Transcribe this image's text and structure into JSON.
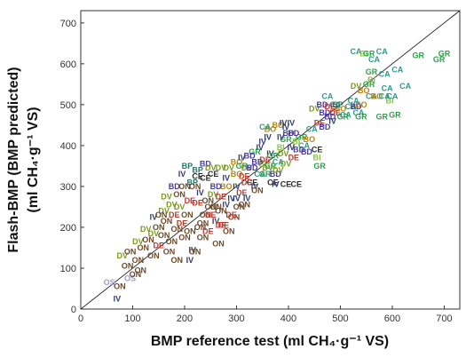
{
  "chart_data": {
    "type": "scatter",
    "xlabel": "BMP reference test (ml CH₄·g⁻¹ VS)",
    "ylabel_line1": "Flash-BMP (BMP predicted)",
    "ylabel_line2": "(ml CH₄·g⁻¹ VS)",
    "xlim": [
      0,
      730
    ],
    "ylim": [
      0,
      730
    ],
    "x_ticks": [
      0,
      100,
      200,
      300,
      400,
      500,
      600,
      700
    ],
    "y_ticks": [
      0,
      100,
      200,
      300,
      400,
      500,
      600,
      700
    ],
    "grid": false,
    "reference_line": "y = x",
    "colors": {
      "IV": "#2d3b6e",
      "BD": "#4a3aa8",
      "BO": "#b8860b",
      "CA": "#2e9a8e",
      "GR": "#2fa04a",
      "DV": "#7a9a1c",
      "DE": "#c0392b",
      "ON": "#6b4a2b",
      "CE": "#2b2b2b",
      "BI": "#8bc34a",
      "BP": "#1f7a6b",
      "OS": "#9a9acd"
    },
    "points": [
      {
        "g": "IV",
        "x": 70,
        "y": 25
      },
      {
        "g": "OS",
        "x": 55,
        "y": 65
      },
      {
        "g": "OS",
        "x": 95,
        "y": 75
      },
      {
        "g": "ON",
        "x": 75,
        "y": 55
      },
      {
        "g": "ON",
        "x": 105,
        "y": 85
      },
      {
        "g": "ON",
        "x": 90,
        "y": 105
      },
      {
        "g": "DV",
        "x": 80,
        "y": 130
      },
      {
        "g": "ON",
        "x": 110,
        "y": 120
      },
      {
        "g": "ON",
        "x": 120,
        "y": 150
      },
      {
        "g": "DV",
        "x": 110,
        "y": 165
      },
      {
        "g": "ON",
        "x": 140,
        "y": 130
      },
      {
        "g": "DV",
        "x": 125,
        "y": 195
      },
      {
        "g": "ON",
        "x": 95,
        "y": 140
      },
      {
        "g": "DE",
        "x": 150,
        "y": 155
      },
      {
        "g": "ON",
        "x": 160,
        "y": 180
      },
      {
        "g": "IV",
        "x": 140,
        "y": 225
      },
      {
        "g": "ON",
        "x": 150,
        "y": 200
      },
      {
        "g": "DV",
        "x": 160,
        "y": 240
      },
      {
        "g": "ON",
        "x": 175,
        "y": 165
      },
      {
        "g": "ON",
        "x": 185,
        "y": 195
      },
      {
        "g": "DE",
        "x": 195,
        "y": 210
      },
      {
        "g": "DV",
        "x": 175,
        "y": 255
      },
      {
        "g": "ON",
        "x": 200,
        "y": 175
      },
      {
        "g": "ON",
        "x": 205,
        "y": 230
      },
      {
        "g": "IV",
        "x": 215,
        "y": 145
      },
      {
        "g": "IV",
        "x": 210,
        "y": 120
      },
      {
        "g": "ON",
        "x": 220,
        "y": 140
      },
      {
        "g": "DE",
        "x": 225,
        "y": 260
      },
      {
        "g": "ON",
        "x": 230,
        "y": 200
      },
      {
        "g": "ON",
        "x": 235,
        "y": 175
      },
      {
        "g": "BD",
        "x": 180,
        "y": 300
      },
      {
        "g": "IV",
        "x": 195,
        "y": 330
      },
      {
        "g": "BP",
        "x": 215,
        "y": 310
      },
      {
        "g": "ON",
        "x": 240,
        "y": 230
      },
      {
        "g": "DE",
        "x": 245,
        "y": 190
      },
      {
        "g": "ON",
        "x": 250,
        "y": 250
      },
      {
        "g": "DV",
        "x": 255,
        "y": 280
      },
      {
        "g": "IV",
        "x": 260,
        "y": 215
      },
      {
        "g": "ON",
        "x": 265,
        "y": 160
      },
      {
        "g": "ON",
        "x": 270,
        "y": 240
      },
      {
        "g": "DE",
        "x": 275,
        "y": 205
      },
      {
        "g": "BO",
        "x": 280,
        "y": 300
      },
      {
        "g": "ON",
        "x": 285,
        "y": 190
      },
      {
        "g": "IV",
        "x": 290,
        "y": 270
      },
      {
        "g": "CE",
        "x": 255,
        "y": 330
      },
      {
        "g": "CE",
        "x": 240,
        "y": 320
      },
      {
        "g": "BP",
        "x": 225,
        "y": 340
      },
      {
        "g": "DV",
        "x": 270,
        "y": 345
      },
      {
        "g": "ON",
        "x": 295,
        "y": 225
      },
      {
        "g": "IV",
        "x": 300,
        "y": 300
      },
      {
        "g": "ON",
        "x": 305,
        "y": 250
      },
      {
        "g": "DE",
        "x": 310,
        "y": 285
      },
      {
        "g": "BO",
        "x": 300,
        "y": 330
      },
      {
        "g": "IV",
        "x": 320,
        "y": 270
      },
      {
        "g": "CE",
        "x": 330,
        "y": 310
      },
      {
        "g": "IV",
        "x": 335,
        "y": 300
      },
      {
        "g": "ON",
        "x": 340,
        "y": 290
      },
      {
        "g": "DE",
        "x": 315,
        "y": 325
      },
      {
        "g": "DV",
        "x": 320,
        "y": 345
      },
      {
        "g": "CA",
        "x": 345,
        "y": 330
      },
      {
        "g": "BI",
        "x": 350,
        "y": 355
      },
      {
        "g": "GR",
        "x": 355,
        "y": 330
      },
      {
        "g": "BD",
        "x": 340,
        "y": 360
      },
      {
        "g": "DV",
        "x": 360,
        "y": 345
      },
      {
        "g": "IV",
        "x": 365,
        "y": 380
      },
      {
        "g": "GR",
        "x": 370,
        "y": 375
      },
      {
        "g": "BD",
        "x": 375,
        "y": 330
      },
      {
        "g": "CA",
        "x": 380,
        "y": 360
      },
      {
        "g": "CE",
        "x": 370,
        "y": 310
      },
      {
        "g": "IV",
        "x": 375,
        "y": 305
      },
      {
        "g": "CE",
        "x": 395,
        "y": 305
      },
      {
        "g": "CE",
        "x": 415,
        "y": 305
      },
      {
        "g": "BI",
        "x": 385,
        "y": 395
      },
      {
        "g": "DV",
        "x": 390,
        "y": 380
      },
      {
        "g": "GR",
        "x": 395,
        "y": 415
      },
      {
        "g": "BD",
        "x": 400,
        "y": 430
      },
      {
        "g": "IV",
        "x": 405,
        "y": 395
      },
      {
        "g": "DE",
        "x": 410,
        "y": 370
      },
      {
        "g": "BD",
        "x": 420,
        "y": 390
      },
      {
        "g": "GR",
        "x": 425,
        "y": 420
      },
      {
        "g": "CA",
        "x": 430,
        "y": 400
      },
      {
        "g": "BD",
        "x": 435,
        "y": 385
      },
      {
        "g": "BO",
        "x": 440,
        "y": 415
      },
      {
        "g": "DV",
        "x": 395,
        "y": 355
      },
      {
        "g": "IV",
        "x": 350,
        "y": 410
      },
      {
        "g": "BO",
        "x": 365,
        "y": 440
      },
      {
        "g": "CA",
        "x": 355,
        "y": 445
      },
      {
        "g": "IV",
        "x": 360,
        "y": 420
      },
      {
        "g": "BO",
        "x": 380,
        "y": 450
      },
      {
        "g": "IV",
        "x": 395,
        "y": 445
      },
      {
        "g": "IV",
        "x": 405,
        "y": 455
      },
      {
        "g": "BD",
        "x": 410,
        "y": 430
      },
      {
        "g": "IV",
        "x": 390,
        "y": 455
      },
      {
        "g": "CE",
        "x": 455,
        "y": 390
      },
      {
        "g": "BI",
        "x": 455,
        "y": 370
      },
      {
        "g": "GR",
        "x": 460,
        "y": 350
      },
      {
        "g": "DV",
        "x": 450,
        "y": 490
      },
      {
        "g": "BD",
        "x": 470,
        "y": 480
      },
      {
        "g": "BD",
        "x": 465,
        "y": 500
      },
      {
        "g": "DE",
        "x": 490,
        "y": 480
      },
      {
        "g": "BD",
        "x": 480,
        "y": 470
      },
      {
        "g": "BO",
        "x": 500,
        "y": 490
      },
      {
        "g": "CA",
        "x": 510,
        "y": 475
      },
      {
        "g": "CA",
        "x": 490,
        "y": 500
      },
      {
        "g": "IV",
        "x": 485,
        "y": 460
      },
      {
        "g": "GR",
        "x": 505,
        "y": 470
      },
      {
        "g": "BP",
        "x": 495,
        "y": 500
      },
      {
        "g": "DE",
        "x": 480,
        "y": 495
      },
      {
        "g": "CA",
        "x": 520,
        "y": 495
      },
      {
        "g": "BD",
        "x": 530,
        "y": 495
      },
      {
        "g": "BO",
        "x": 540,
        "y": 500
      },
      {
        "g": "CA",
        "x": 535,
        "y": 480
      },
      {
        "g": "CA",
        "x": 525,
        "y": 510
      },
      {
        "g": "BO",
        "x": 545,
        "y": 535
      },
      {
        "g": "GR",
        "x": 540,
        "y": 470
      },
      {
        "g": "DV",
        "x": 530,
        "y": 545
      },
      {
        "g": "GR",
        "x": 555,
        "y": 550
      },
      {
        "g": "CA",
        "x": 560,
        "y": 520
      },
      {
        "g": "BO",
        "x": 570,
        "y": 520
      },
      {
        "g": "BI",
        "x": 560,
        "y": 560
      },
      {
        "g": "GR",
        "x": 580,
        "y": 470
      },
      {
        "g": "CA",
        "x": 585,
        "y": 520
      },
      {
        "g": "CA",
        "x": 590,
        "y": 540
      },
      {
        "g": "BI",
        "x": 595,
        "y": 510
      },
      {
        "g": "CA",
        "x": 600,
        "y": 520
      },
      {
        "g": "CA",
        "x": 530,
        "y": 630
      },
      {
        "g": "BI",
        "x": 545,
        "y": 625
      },
      {
        "g": "GR",
        "x": 555,
        "y": 625
      },
      {
        "g": "CA",
        "x": 565,
        "y": 610
      },
      {
        "g": "CA",
        "x": 580,
        "y": 630
      },
      {
        "g": "GR",
        "x": 650,
        "y": 620
      },
      {
        "g": "GR",
        "x": 700,
        "y": 625
      },
      {
        "g": "GR",
        "x": 690,
        "y": 610
      },
      {
        "g": "GR",
        "x": 560,
        "y": 580
      },
      {
        "g": "CA",
        "x": 585,
        "y": 575
      },
      {
        "g": "CA",
        "x": 610,
        "y": 585
      },
      {
        "g": "CA",
        "x": 625,
        "y": 545
      },
      {
        "g": "GR",
        "x": 605,
        "y": 475
      },
      {
        "g": "ON",
        "x": 130,
        "y": 170
      },
      {
        "g": "ON",
        "x": 165,
        "y": 215
      },
      {
        "g": "DV",
        "x": 190,
        "y": 250
      },
      {
        "g": "DE",
        "x": 210,
        "y": 265
      },
      {
        "g": "ON",
        "x": 220,
        "y": 300
      },
      {
        "g": "IV",
        "x": 230,
        "y": 285
      },
      {
        "g": "ON",
        "x": 245,
        "y": 265
      },
      {
        "g": "ON",
        "x": 260,
        "y": 250
      },
      {
        "g": "BD",
        "x": 260,
        "y": 300
      },
      {
        "g": "IV",
        "x": 280,
        "y": 320
      },
      {
        "g": "DV",
        "x": 285,
        "y": 345
      },
      {
        "g": "BO",
        "x": 300,
        "y": 360
      },
      {
        "g": "GR",
        "x": 310,
        "y": 350
      },
      {
        "g": "IV",
        "x": 310,
        "y": 370
      },
      {
        "g": "DE",
        "x": 320,
        "y": 310
      },
      {
        "g": "BD",
        "x": 330,
        "y": 345
      },
      {
        "g": "ON",
        "x": 200,
        "y": 300
      },
      {
        "g": "ON",
        "x": 190,
        "y": 280
      },
      {
        "g": "DE",
        "x": 250,
        "y": 230
      },
      {
        "g": "DE",
        "x": 270,
        "y": 205
      },
      {
        "g": "ON",
        "x": 170,
        "y": 140
      },
      {
        "g": "ON",
        "x": 185,
        "y": 120
      },
      {
        "g": "DV",
        "x": 140,
        "y": 185
      },
      {
        "g": "ON",
        "x": 115,
        "y": 95
      },
      {
        "g": "IV",
        "x": 280,
        "y": 255
      },
      {
        "g": "DE",
        "x": 290,
        "y": 230
      },
      {
        "g": "CE",
        "x": 225,
        "y": 325
      },
      {
        "g": "BP",
        "x": 205,
        "y": 350
      },
      {
        "g": "BD",
        "x": 240,
        "y": 355
      },
      {
        "g": "DV",
        "x": 250,
        "y": 345
      },
      {
        "g": "GR",
        "x": 335,
        "y": 385
      },
      {
        "g": "IV",
        "x": 345,
        "y": 395
      },
      {
        "g": "BD",
        "x": 325,
        "y": 375
      },
      {
        "g": "DE",
        "x": 355,
        "y": 365
      },
      {
        "g": "GR",
        "x": 365,
        "y": 350
      },
      {
        "g": "DV",
        "x": 380,
        "y": 340
      },
      {
        "g": "IV",
        "x": 385,
        "y": 420
      },
      {
        "g": "BI",
        "x": 415,
        "y": 410
      },
      {
        "g": "CA",
        "x": 445,
        "y": 440
      },
      {
        "g": "DE",
        "x": 460,
        "y": 455
      },
      {
        "g": "BD",
        "x": 470,
        "y": 445
      },
      {
        "g": "CA",
        "x": 475,
        "y": 520
      },
      {
        "g": "IV",
        "x": 300,
        "y": 270
      },
      {
        "g": "ON",
        "x": 315,
        "y": 255
      },
      {
        "g": "DE",
        "x": 270,
        "y": 275
      },
      {
        "g": "ON",
        "x": 235,
        "y": 210
      },
      {
        "g": "DV",
        "x": 165,
        "y": 275
      },
      {
        "g": "ON",
        "x": 155,
        "y": 230
      },
      {
        "g": "DE",
        "x": 180,
        "y": 230
      },
      {
        "g": "ON",
        "x": 210,
        "y": 190
      }
    ]
  }
}
